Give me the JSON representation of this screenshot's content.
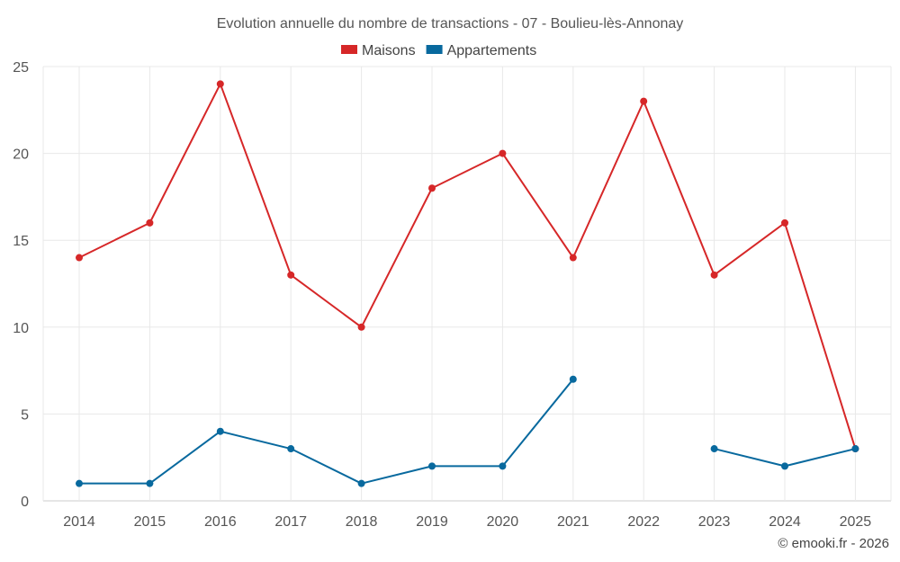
{
  "chart_data": {
    "type": "line",
    "title": "Evolution annuelle du nombre de transactions - 07 - Boulieu-lès-Annonay",
    "xlabel": "",
    "ylabel": "",
    "categories": [
      "2014",
      "2015",
      "2016",
      "2017",
      "2018",
      "2019",
      "2020",
      "2021",
      "2022",
      "2023",
      "2024",
      "2025"
    ],
    "ylim": [
      0,
      25
    ],
    "yticks": [
      0,
      5,
      10,
      15,
      20,
      25
    ],
    "grid": true,
    "legend_position": "top-center",
    "series": [
      {
        "name": "Maisons",
        "color": "#d62728",
        "values": [
          14,
          16,
          24,
          13,
          10,
          18,
          20,
          14,
          23,
          13,
          16,
          3
        ]
      },
      {
        "name": "Appartements",
        "color": "#08699e",
        "values": [
          1,
          1,
          4,
          3,
          1,
          2,
          2,
          7,
          null,
          3,
          2,
          3
        ]
      }
    ]
  },
  "credit": "© emooki.fr - 2026"
}
